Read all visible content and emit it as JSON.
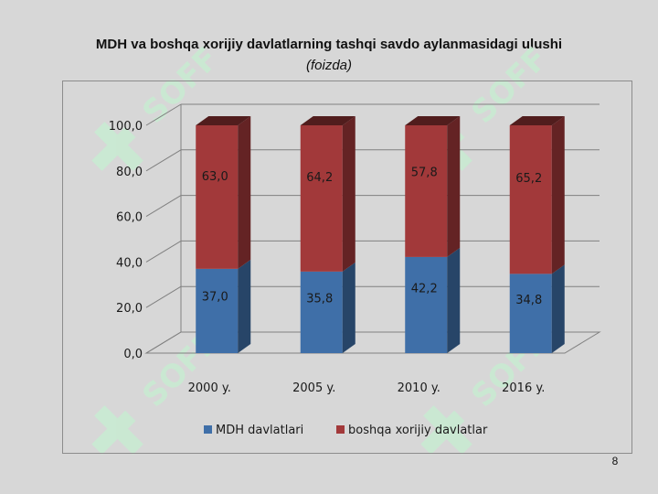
{
  "slide": {
    "title": "MDH va boshqa xorijiy davlatlarning tashqi savdo aylanmasidagi ulushi",
    "subtitle": "(foizda)",
    "page_number": "8"
  },
  "watermark": {
    "text": "SOFF",
    "icon": "logo-watermark-icon",
    "color": "#c8ecd2"
  },
  "colors": {
    "series_1": "#3f6fa8",
    "series_2": "#a2393a",
    "grid": "#808080"
  },
  "chart_data": {
    "type": "bar",
    "stacked": true,
    "three_d": true,
    "categories": [
      "2000 y.",
      "2005 y.",
      "2010 y.",
      "2016 y."
    ],
    "series": [
      {
        "name": "MDH davlatlari",
        "values": [
          37.0,
          35.8,
          42.2,
          34.8
        ],
        "labels": [
          "37,0",
          "35,8",
          "42,2",
          "34,8"
        ]
      },
      {
        "name": "boshqa xorijiy davlatlar",
        "values": [
          63.0,
          64.2,
          57.8,
          65.2
        ],
        "labels": [
          "63,0",
          "64,2",
          "57,8",
          "65,2"
        ]
      }
    ],
    "ylim": [
      0,
      100
    ],
    "yticks": [
      0,
      20,
      40,
      60,
      80,
      100
    ],
    "ytick_labels": [
      "0,0",
      "20,0",
      "40,0",
      "60,0",
      "80,0",
      "100,0"
    ],
    "grid": true,
    "legend": "bottom"
  }
}
